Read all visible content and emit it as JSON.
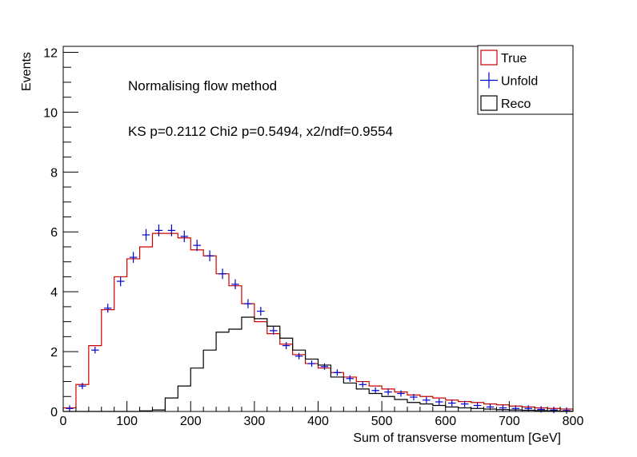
{
  "chart_data": {
    "type": "histogram",
    "xlabel": "Sum of transverse momentum [GeV]",
    "ylabel": "Events",
    "xlim": [
      0,
      800
    ],
    "ylim": [
      0,
      12.2
    ],
    "x_ticks": [
      "0",
      "100",
      "200",
      "300",
      "400",
      "500",
      "600",
      "700",
      "800"
    ],
    "y_ticks": [
      "0",
      "2",
      "4",
      "6",
      "8",
      "10",
      "12"
    ],
    "bin_width": 20,
    "annotations": [
      "Normalising flow method",
      "KS p=0.2112 Chi2 p=0.5494, x2/ndf=0.9554"
    ],
    "legend": {
      "placement": "top-right",
      "entries": [
        {
          "label": "True",
          "color": "#cc0000",
          "style": "box"
        },
        {
          "label": "Unfold",
          "color": "#0000cc",
          "style": "cross"
        },
        {
          "label": "Reco",
          "color": "#000000",
          "style": "box"
        }
      ]
    },
    "series": [
      {
        "name": "True",
        "style": "step",
        "color": "#cc0000",
        "values": [
          0.12,
          0.9,
          2.2,
          3.4,
          4.5,
          5.1,
          5.5,
          5.95,
          5.95,
          5.8,
          5.4,
          5.2,
          4.6,
          4.2,
          3.6,
          3.0,
          2.6,
          2.25,
          1.9,
          1.6,
          1.45,
          1.3,
          1.15,
          1.0,
          0.85,
          0.75,
          0.65,
          0.55,
          0.5,
          0.45,
          0.38,
          0.33,
          0.3,
          0.25,
          0.22,
          0.18,
          0.15,
          0.12,
          0.1,
          0.08
        ]
      },
      {
        "name": "Unfold",
        "style": "errorbar",
        "color": "#0000cc",
        "values": [
          0.1,
          0.85,
          2.05,
          3.45,
          4.35,
          5.15,
          5.9,
          6.05,
          6.05,
          5.85,
          5.55,
          5.2,
          4.6,
          4.25,
          3.6,
          3.35,
          2.7,
          2.2,
          1.85,
          1.6,
          1.5,
          1.3,
          1.1,
          0.9,
          0.7,
          0.65,
          0.6,
          0.48,
          0.38,
          0.32,
          0.28,
          0.25,
          0.2,
          0.15,
          0.12,
          0.1,
          0.1,
          0.07,
          0.05,
          0.03
        ]
      },
      {
        "name": "Reco",
        "style": "step",
        "color": "#000000",
        "values": [
          0,
          0,
          0,
          0,
          0,
          0,
          0.02,
          0.05,
          0.45,
          0.85,
          1.45,
          2.05,
          2.65,
          2.75,
          3.15,
          3.1,
          2.85,
          2.45,
          2.05,
          1.75,
          1.55,
          1.15,
          0.95,
          0.75,
          0.6,
          0.5,
          0.4,
          0.3,
          0.25,
          0.2,
          0.15,
          0.12,
          0.1,
          0.08,
          0.06,
          0.05,
          0.04,
          0.03,
          0.02,
          0.01
        ]
      }
    ]
  }
}
